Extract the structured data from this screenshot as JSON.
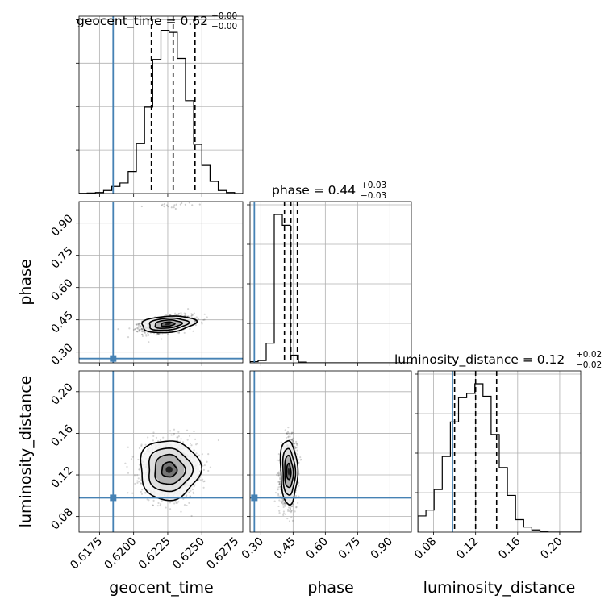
{
  "chart_data": {
    "type": "corner",
    "parameters": [
      "geocent_time",
      "phase",
      "luminosity_distance"
    ],
    "truth": {
      "geocent_time": 0.6185,
      "phase": 0.27,
      "luminosity_distance": 0.098
    },
    "titles": {
      "geocent_time": {
        "name": "geocent_time",
        "median": "0.62",
        "plus": "+0.00",
        "minus": "−0.00"
      },
      "phase": {
        "name": "phase",
        "median": "0.44",
        "plus": "+0.03",
        "minus": "−0.03"
      },
      "luminosity_distance": {
        "name": "luminosity_distance",
        "median": "0.12",
        "plus": "+0.02",
        "minus": "−0.02"
      }
    },
    "axes": {
      "geocent_time": {
        "label": "geocent_time",
        "range": [
          0.616,
          0.628
        ],
        "ticks": [
          "0.6175",
          "0.6200",
          "0.6225",
          "0.6250",
          "0.6275"
        ]
      },
      "phase": {
        "label": "phase",
        "range": [
          0.25,
          1.0
        ],
        "ticks": [
          "0.30",
          "0.45",
          "0.60",
          "0.75",
          "0.90"
        ]
      },
      "luminosity_distance": {
        "label": "luminosity_distance",
        "range": [
          0.065,
          0.22
        ],
        "ticks": [
          "0.08",
          "0.12",
          "0.16",
          "0.20"
        ]
      }
    },
    "histograms": {
      "geocent_time": {
        "bin_edges": [
          0.616,
          0.6166,
          0.6172,
          0.6178,
          0.6184,
          0.619,
          0.6196,
          0.6202,
          0.6208,
          0.6214,
          0.622,
          0.6226,
          0.6232,
          0.6238,
          0.6244,
          0.625,
          0.6256,
          0.6262,
          0.6268,
          0.6274,
          0.628
        ],
        "counts": [
          0.5,
          1,
          2,
          6,
          14,
          21,
          44,
          100,
          172,
          267,
          325,
          321,
          269,
          185,
          98,
          56,
          24,
          6,
          2,
          0
        ],
        "quantiles": [
          0.6213,
          0.6229,
          0.6245
        ]
      },
      "phase": {
        "bin_edges": [
          0.25,
          0.2875,
          0.325,
          0.3625,
          0.4,
          0.4375,
          0.475,
          0.5125,
          0.55,
          0.5875,
          0.625,
          0.6625,
          0.7,
          0.7375,
          0.775,
          0.8125,
          0.85,
          0.8875,
          0.925,
          0.9625,
          1.0
        ],
        "counts": [
          3,
          6,
          51,
          386,
          358,
          20,
          2,
          0,
          0,
          0,
          0,
          0,
          0,
          0,
          0,
          0,
          0,
          0,
          0,
          0
        ],
        "quantiles": [
          0.41,
          0.44,
          0.47
        ]
      },
      "luminosity_distance": {
        "bin_edges": [
          0.065,
          0.07275,
          0.0805,
          0.08825,
          0.096,
          0.10375,
          0.1115,
          0.11925,
          0.127,
          0.13475,
          0.1425,
          0.15025,
          0.158,
          0.16575,
          0.1735,
          0.18125,
          0.189,
          0.19675,
          0.2045,
          0.21225,
          0.22
        ],
        "counts": [
          22,
          30,
          58,
          103,
          150,
          183,
          189,
          202,
          185,
          133,
          88,
          50,
          17,
          7,
          3,
          1,
          0,
          0,
          0,
          0
        ],
        "quantiles": [
          0.1,
          0.12,
          0.14
        ]
      }
    },
    "pairs": [
      {
        "x": "geocent_time",
        "y": "phase",
        "center": [
          0.6225,
          0.43
        ],
        "spread": [
          0.0009,
          0.017
        ],
        "tilt": 0.15,
        "outliers": [
          [
            0.6222,
            0.985
          ],
          [
            0.6232,
            0.975
          ],
          [
            0.624,
            0.99
          ]
        ]
      },
      {
        "x": "geocent_time",
        "y": "luminosity_distance",
        "center": [
          0.6226,
          0.125
        ],
        "spread": [
          0.001,
          0.013
        ],
        "tilt": 0.0,
        "outliers": []
      },
      {
        "x": "phase",
        "y": "luminosity_distance",
        "center": [
          0.43,
          0.123
        ],
        "spread": [
          0.018,
          0.014
        ],
        "tilt": 0.05,
        "outliers": []
      }
    ],
    "truth_color": "#4682b4",
    "grid": true
  }
}
